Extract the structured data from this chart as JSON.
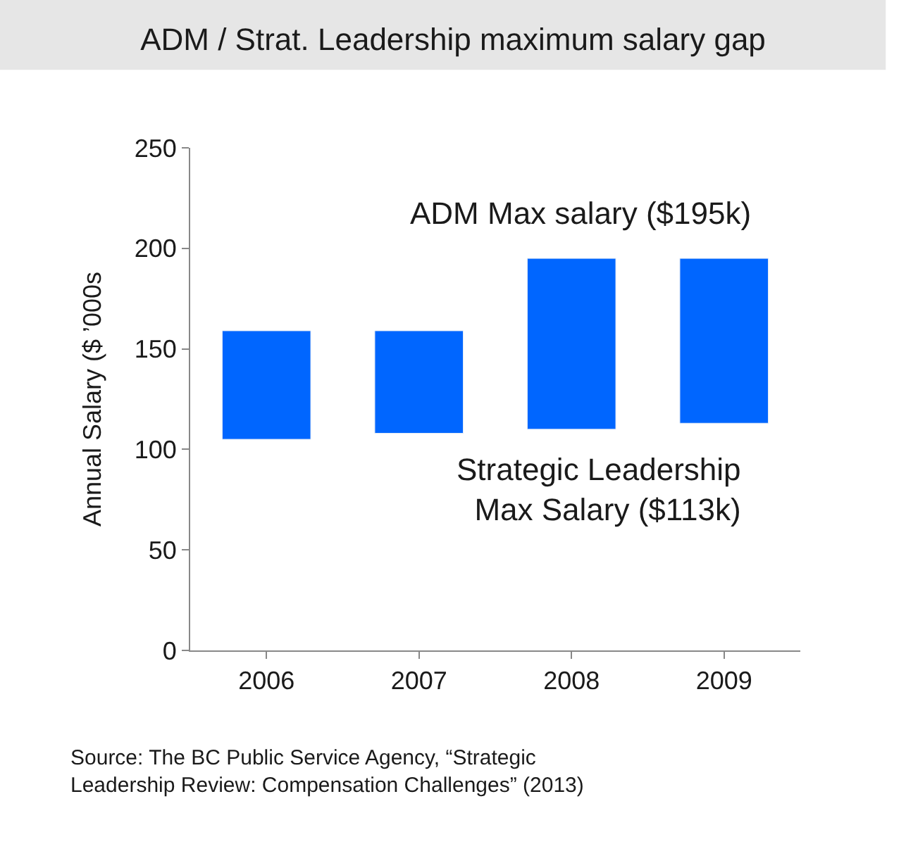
{
  "chart_data": {
    "type": "bar",
    "title": "ADM / Strat. Leadership maximum salary gap",
    "ylabel": "Annual Salary ($ ’000s",
    "categories": [
      "2006",
      "2007",
      "2008",
      "2009"
    ],
    "base": [
      105,
      108,
      110,
      113
    ],
    "values": [
      54,
      51,
      85,
      82
    ],
    "color": "#0066ff",
    "ylim": [
      0,
      250
    ],
    "yticks": [
      0,
      50,
      100,
      150,
      200,
      250
    ],
    "annotations": [
      "ADM Max salary ($195k)",
      "Strategic Leadership\nMax Salary ($113k)",
      "Source: The BC Public Service Agency, “Strategic\nLeadership Review: Compensation Challenges” (2013)"
    ]
  }
}
